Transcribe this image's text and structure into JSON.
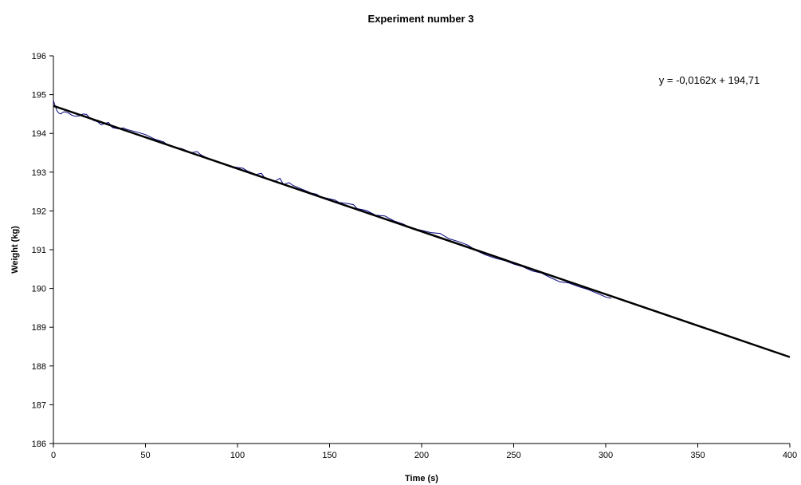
{
  "chart_data": {
    "type": "line",
    "title": "Experiment number 3",
    "xlabel": "Time (s)",
    "ylabel": "Weight (kg)",
    "xlim": [
      0,
      400
    ],
    "ylim": [
      186,
      196
    ],
    "xticks": [
      0,
      50,
      100,
      150,
      200,
      250,
      300,
      350,
      400
    ],
    "yticks": [
      186,
      187,
      188,
      189,
      190,
      191,
      192,
      193,
      194,
      195,
      196
    ],
    "grid": false,
    "legend": "none",
    "colors": {
      "measured": "#000080",
      "trendline": "#000000"
    },
    "series": [
      {
        "x": [
          0,
          1,
          2,
          3,
          4,
          5,
          6,
          8,
          10,
          12,
          14,
          16,
          18,
          20,
          22,
          24,
          26,
          28,
          30,
          32,
          35,
          38,
          40,
          45,
          50,
          55,
          60,
          62,
          65,
          70,
          75,
          78,
          80,
          85,
          90,
          95,
          100,
          103,
          105,
          110,
          113,
          115,
          120,
          123,
          125,
          128,
          130,
          135,
          140,
          143,
          145,
          150,
          153,
          155,
          160,
          163,
          165,
          170,
          175,
          180,
          185,
          190,
          195,
          200,
          205,
          210,
          215,
          220,
          225,
          230,
          235,
          240,
          245,
          250,
          255,
          260,
          265,
          270,
          275,
          280,
          285,
          290,
          295,
          300,
          303
        ],
        "y": [
          194.85,
          194.7,
          194.58,
          194.52,
          194.5,
          194.54,
          194.56,
          194.53,
          194.47,
          194.44,
          194.45,
          194.5,
          194.49,
          194.38,
          194.33,
          194.3,
          194.22,
          194.26,
          194.28,
          194.15,
          194.12,
          194.14,
          194.1,
          194.04,
          193.97,
          193.85,
          193.78,
          193.7,
          193.66,
          193.6,
          193.5,
          193.53,
          193.45,
          193.33,
          193.24,
          193.16,
          193.12,
          193.1,
          193.04,
          192.94,
          192.97,
          192.84,
          192.76,
          192.84,
          192.68,
          192.73,
          192.66,
          192.56,
          192.46,
          192.43,
          192.37,
          192.31,
          192.28,
          192.22,
          192.19,
          192.16,
          192.06,
          192.01,
          191.89,
          191.87,
          191.74,
          191.66,
          191.55,
          191.5,
          191.44,
          191.42,
          191.28,
          191.21,
          191.12,
          190.97,
          190.86,
          190.78,
          190.72,
          190.63,
          190.56,
          190.45,
          190.4,
          190.28,
          190.17,
          190.14,
          190.05,
          189.98,
          189.88,
          189.78,
          189.74
        ]
      }
    ],
    "trendline": {
      "slope": -0.0162,
      "intercept": 194.71,
      "x_range": [
        0,
        400
      ],
      "equation": "y = -0,0162x + 194,71"
    }
  }
}
